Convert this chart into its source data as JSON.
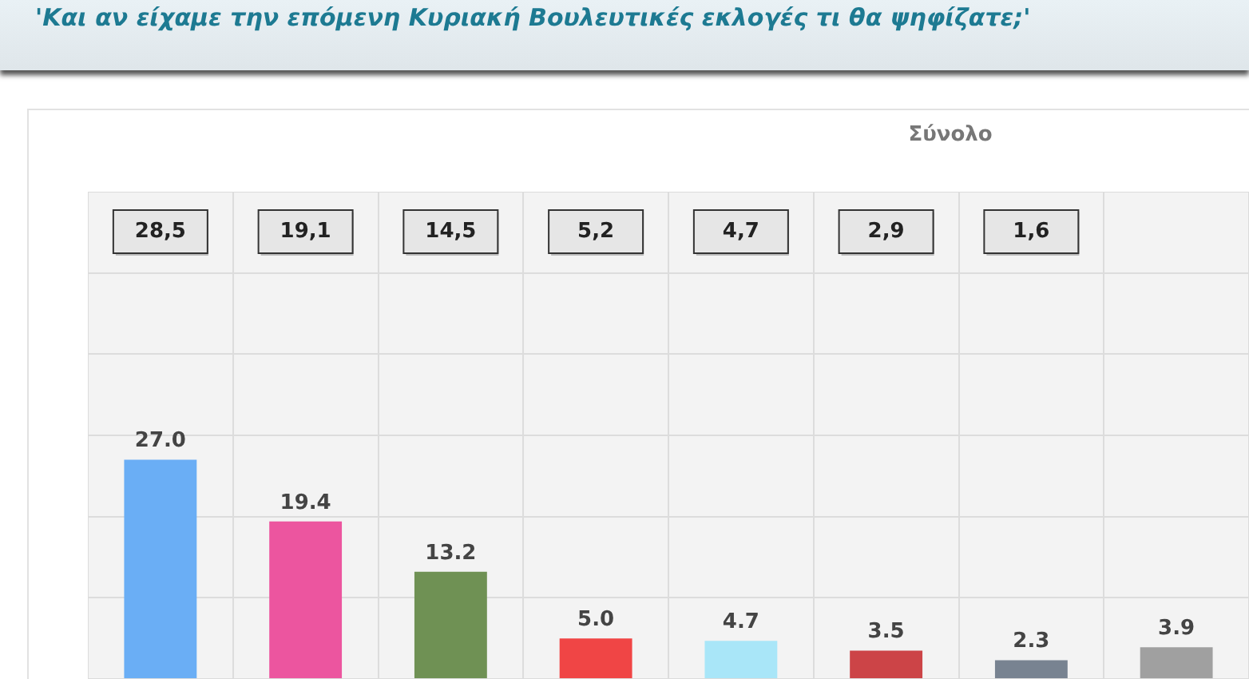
{
  "chart_data": {
    "type": "bar",
    "title": "'Και αν είχαμε την επόμενη Κυριακή Βουλευτικές εκλογές τι θα ψηφίζατε;'",
    "subtitle": "Σύνολο",
    "categories": [
      null,
      null,
      null,
      null,
      null,
      null,
      null,
      null
    ],
    "values": [
      27.0,
      19.4,
      13.2,
      5.0,
      4.7,
      3.5,
      2.3,
      3.9
    ],
    "colors": [
      "#6aaef5",
      "#ec559f",
      "#6f9154",
      "#f04545",
      "#a9e6f8",
      "#cc4447",
      "#788391",
      "#a0a0a0"
    ],
    "value_labels": [
      "27.0",
      "19.4",
      "13.2",
      "5.0",
      "4.7",
      "3.5",
      "2.3",
      "3.9"
    ],
    "annotations": [
      "28,5",
      "19,1",
      "14,5",
      "5,2",
      "4,7",
      "2,9",
      "1,6"
    ],
    "ylim": [
      0,
      60
    ],
    "yticks": [
      {
        "value": 0,
        "label": null
      },
      {
        "value": 10,
        "label": null
      },
      {
        "value": 20,
        "label": null
      },
      {
        "value": 30,
        "label": null
      },
      {
        "value": 40,
        "label": null
      },
      {
        "value": 50,
        "label": null
      },
      {
        "value": 60,
        "label": null
      }
    ],
    "grid": true,
    "legend": false
  }
}
